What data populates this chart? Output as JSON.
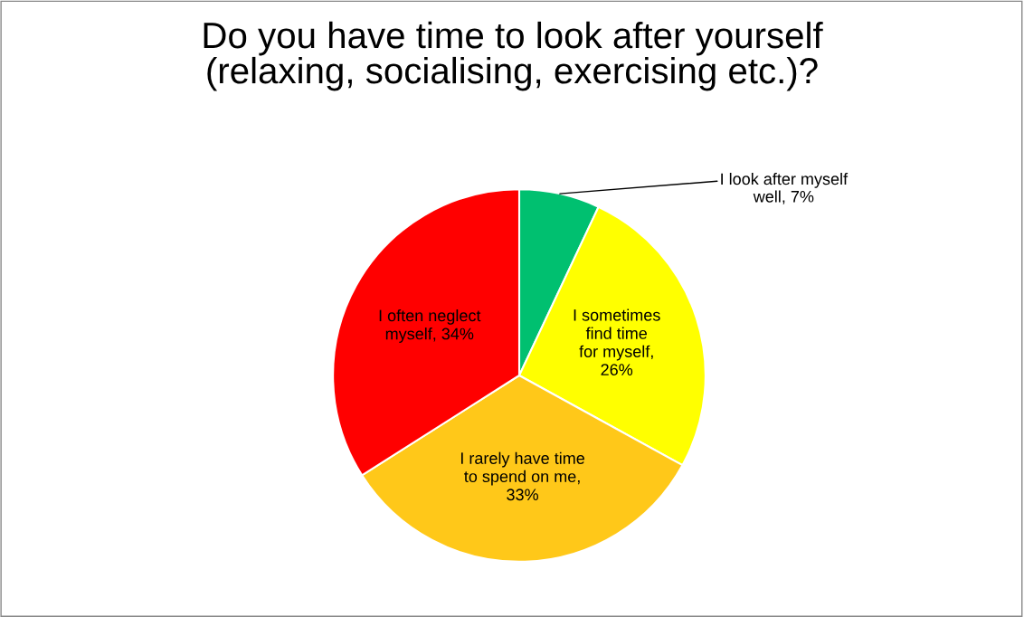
{
  "chart_data": {
    "type": "pie",
    "title": "Do you have time to look after yourself\n(relaxing, socialising, exercising etc.)?",
    "categories": [
      "I look after myself\nwell, 7%",
      "I sometimes\nfind time\nfor myself,\n26%",
      "I rarely have time\nto spend on me,\n33%",
      "I often neglect\nmyself, 34%"
    ],
    "values": [
      7,
      26,
      33,
      34
    ],
    "colors": [
      "#00c070",
      "#ffff00",
      "#ffc819",
      "#ff0000"
    ],
    "legend": false
  }
}
